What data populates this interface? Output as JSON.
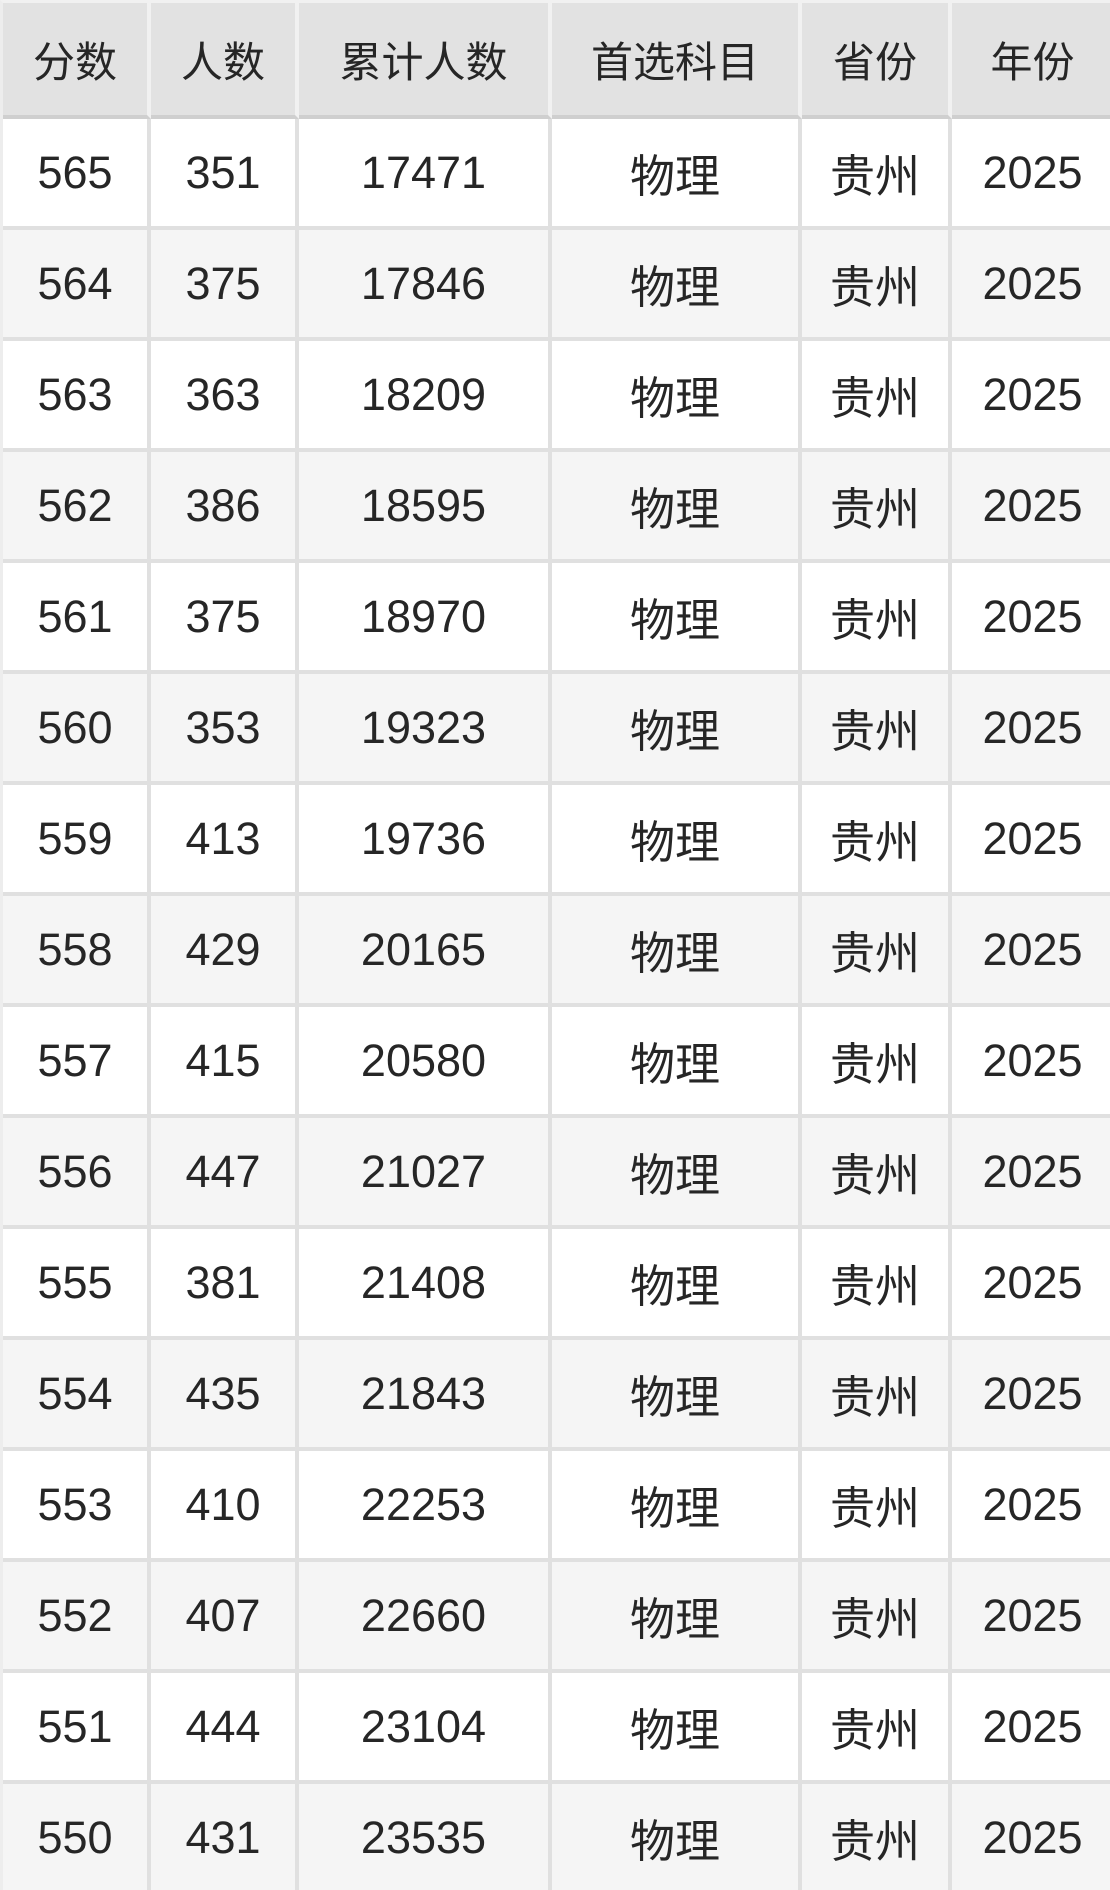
{
  "table": {
    "keys": [
      "score",
      "count",
      "cumulative",
      "subject",
      "province",
      "year"
    ],
    "headers": [
      "分数",
      "人数",
      "累计人数",
      "首选科目",
      "省份",
      "年份"
    ],
    "rows": [
      [
        "565",
        "351",
        "17471",
        "物理",
        "贵州",
        "2025"
      ],
      [
        "564",
        "375",
        "17846",
        "物理",
        "贵州",
        "2025"
      ],
      [
        "563",
        "363",
        "18209",
        "物理",
        "贵州",
        "2025"
      ],
      [
        "562",
        "386",
        "18595",
        "物理",
        "贵州",
        "2025"
      ],
      [
        "561",
        "375",
        "18970",
        "物理",
        "贵州",
        "2025"
      ],
      [
        "560",
        "353",
        "19323",
        "物理",
        "贵州",
        "2025"
      ],
      [
        "559",
        "413",
        "19736",
        "物理",
        "贵州",
        "2025"
      ],
      [
        "558",
        "429",
        "20165",
        "物理",
        "贵州",
        "2025"
      ],
      [
        "557",
        "415",
        "20580",
        "物理",
        "贵州",
        "2025"
      ],
      [
        "556",
        "447",
        "21027",
        "物理",
        "贵州",
        "2025"
      ],
      [
        "555",
        "381",
        "21408",
        "物理",
        "贵州",
        "2025"
      ],
      [
        "554",
        "435",
        "21843",
        "物理",
        "贵州",
        "2025"
      ],
      [
        "553",
        "410",
        "22253",
        "物理",
        "贵州",
        "2025"
      ],
      [
        "552",
        "407",
        "22660",
        "物理",
        "贵州",
        "2025"
      ],
      [
        "551",
        "444",
        "23104",
        "物理",
        "贵州",
        "2025"
      ],
      [
        "550",
        "431",
        "23535",
        "物理",
        "贵州",
        "2025"
      ]
    ]
  },
  "chart_data": {
    "type": "table",
    "columns": [
      "分数",
      "人数",
      "累计人数",
      "首选科目",
      "省份",
      "年份"
    ],
    "rows": [
      [
        565,
        351,
        17471,
        "物理",
        "贵州",
        2025
      ],
      [
        564,
        375,
        17846,
        "物理",
        "贵州",
        2025
      ],
      [
        563,
        363,
        18209,
        "物理",
        "贵州",
        2025
      ],
      [
        562,
        386,
        18595,
        "物理",
        "贵州",
        2025
      ],
      [
        561,
        375,
        18970,
        "物理",
        "贵州",
        2025
      ],
      [
        560,
        353,
        19323,
        "物理",
        "贵州",
        2025
      ],
      [
        559,
        413,
        19736,
        "物理",
        "贵州",
        2025
      ],
      [
        558,
        429,
        20165,
        "物理",
        "贵州",
        2025
      ],
      [
        557,
        415,
        20580,
        "物理",
        "贵州",
        2025
      ],
      [
        556,
        447,
        21027,
        "物理",
        "贵州",
        2025
      ],
      [
        555,
        381,
        21408,
        "物理",
        "贵州",
        2025
      ],
      [
        554,
        435,
        21843,
        "物理",
        "贵州",
        2025
      ],
      [
        553,
        410,
        22253,
        "物理",
        "贵州",
        2025
      ],
      [
        552,
        407,
        22660,
        "物理",
        "贵州",
        2025
      ],
      [
        551,
        444,
        23104,
        "物理",
        "贵州",
        2025
      ],
      [
        550,
        431,
        23535,
        "物理",
        "贵州",
        2025
      ]
    ],
    "legend_position": "none",
    "grid": "on"
  },
  "colors": {
    "header_background": "#e2e2e2",
    "row_background": "#ffffff",
    "row_alt_background": "#f5f5f5",
    "row_border": "#e0e0e0",
    "header_divider": "#f1f1f1",
    "header_bottom_border": "#cfcfcf",
    "text": "#262626"
  }
}
